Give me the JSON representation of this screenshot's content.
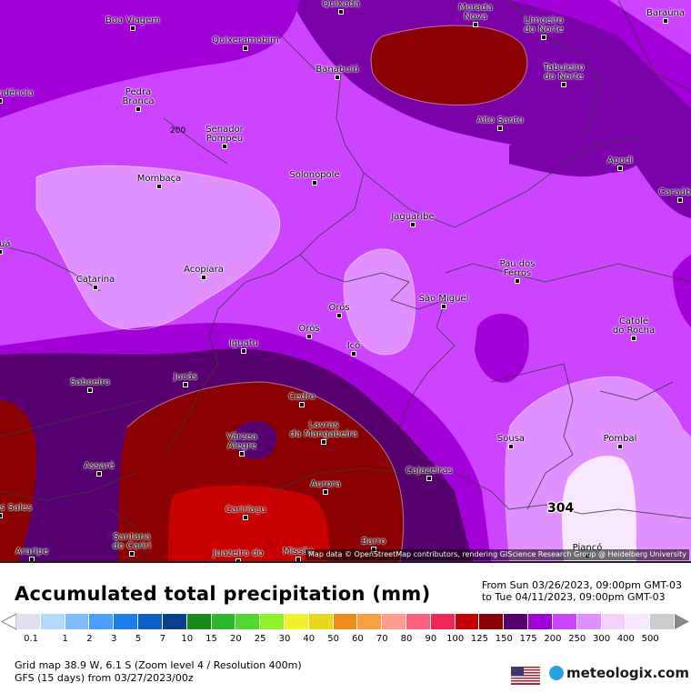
{
  "map": {
    "attribution": "Map data © OpenStreetMap contributors, rendering GIScience Research Group @ Heidelberg University",
    "value_labels": [
      "200",
      "304"
    ],
    "cities": [
      {
        "name": "Quixadá"
      },
      {
        "name": "Morada\nNova"
      },
      {
        "name": "Limoeiro\ndo Norte"
      },
      {
        "name": "Baraúna"
      },
      {
        "name": "Boa Viagem"
      },
      {
        "name": "Quixeramobim"
      },
      {
        "name": "Banabuiú"
      },
      {
        "name": "Tabuleiro\ndo Norte"
      },
      {
        "name": "Independência"
      },
      {
        "name": "Pedra\nBranca"
      },
      {
        "name": "Senador\nPompeu"
      },
      {
        "name": "Alto Santo"
      },
      {
        "name": "Apodi"
      },
      {
        "name": "Mombaça"
      },
      {
        "name": "Solonópole"
      },
      {
        "name": "Caraúbas"
      },
      {
        "name": "Jaguaribe"
      },
      {
        "name": "Tauá"
      },
      {
        "name": "Acopiara"
      },
      {
        "name": "Pau dos\nFerros"
      },
      {
        "name": "Catarina"
      },
      {
        "name": "São Miguel"
      },
      {
        "name": "Orós"
      },
      {
        "name": "Catolé\ndo Rocha"
      },
      {
        "name": "Iguatu"
      },
      {
        "name": "Orós"
      },
      {
        "name": "Icó"
      },
      {
        "name": "Saboeiro"
      },
      {
        "name": "Jucás"
      },
      {
        "name": "Cedro"
      },
      {
        "name": "Lavras\nda Mangabeira"
      },
      {
        "name": "Sousa"
      },
      {
        "name": "Pombal"
      },
      {
        "name": "Várzea\nAlegre"
      },
      {
        "name": "Assaré"
      },
      {
        "name": "Cajazeiras"
      },
      {
        "name": "Aurora"
      },
      {
        "name": "Campos Sales"
      },
      {
        "name": "Cariríaçu"
      },
      {
        "name": "Santana\ndo Cariri"
      },
      {
        "name": "Barro"
      },
      {
        "name": "Araripe"
      },
      {
        "name": "Juazeiro do"
      },
      {
        "name": "Missão"
      },
      {
        "name": "Piancó"
      }
    ]
  },
  "footer": {
    "title": "Accumulated total precipitation (mm)",
    "period_from": "From Sun 03/26/2023, 09:00pm GMT-03",
    "period_to": "to Tue 04/11/2023, 09:00pm GMT-03",
    "grid_line1": "Grid map 38.9 W, 6.1 S (Zoom level 4 / Resolution 400m)",
    "grid_line2": "GFS (15 days) from 03/27/2023/00z",
    "brand": "meteologix.com",
    "flag_icon": "us-flag-icon",
    "legend": {
      "labels": [
        "0.1",
        "1",
        "2",
        "3",
        "5",
        "7",
        "10",
        "15",
        "20",
        "25",
        "30",
        "40",
        "50",
        "60",
        "70",
        "80",
        "90",
        "100",
        "125",
        "150",
        "175",
        "200",
        "250",
        "300",
        "400",
        "500"
      ],
      "colors": [
        "#e0e0ef",
        "#b4d8ff",
        "#80bdff",
        "#4c9fff",
        "#1a7eea",
        "#0c5fc4",
        "#0a3f8c",
        "#178a17",
        "#2bb82b",
        "#4fd82d",
        "#8ef22b",
        "#f2f22a",
        "#e8d81a",
        "#f08a1a",
        "#f8a040",
        "#ff9c8c",
        "#ff6080",
        "#f0285a",
        "#c80000",
        "#8b0000",
        "#55006e",
        "#a200d8",
        "#cc44ff",
        "#e090ff",
        "#f5d0ff",
        "#f8e8ff",
        "#cccccc"
      ]
    }
  }
}
